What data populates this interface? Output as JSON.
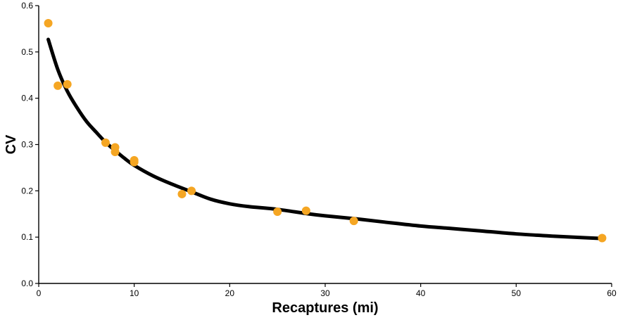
{
  "chart_data": {
    "type": "scatter",
    "xlabel": "Recaptures (mi)",
    "ylabel": "CV",
    "xlim": [
      0,
      60
    ],
    "ylim": [
      0,
      0.6
    ],
    "x_ticks": [
      "0",
      "10",
      "20",
      "30",
      "40",
      "50",
      "60"
    ],
    "y_ticks": [
      "0.0",
      "0.1",
      "0.2",
      "0.3",
      "0.4",
      "0.5",
      "0.6"
    ],
    "grid": false,
    "legend": "none",
    "point_color": "#F5A623",
    "line_color": "#000000",
    "points": [
      {
        "x": 1,
        "y": 0.562
      },
      {
        "x": 2,
        "y": 0.427
      },
      {
        "x": 3,
        "y": 0.43
      },
      {
        "x": 7,
        "y": 0.304
      },
      {
        "x": 8,
        "y": 0.294
      },
      {
        "x": 8,
        "y": 0.284
      },
      {
        "x": 10,
        "y": 0.266
      },
      {
        "x": 10,
        "y": 0.262
      },
      {
        "x": 15,
        "y": 0.193
      },
      {
        "x": 16,
        "y": 0.2
      },
      {
        "x": 25,
        "y": 0.155
      },
      {
        "x": 28,
        "y": 0.157
      },
      {
        "x": 33,
        "y": 0.135
      },
      {
        "x": 59,
        "y": 0.098
      }
    ],
    "fit_line": [
      {
        "x": 1,
        "y": 0.527
      },
      {
        "x": 2,
        "y": 0.462
      },
      {
        "x": 3,
        "y": 0.415
      },
      {
        "x": 4,
        "y": 0.38
      },
      {
        "x": 5,
        "y": 0.35
      },
      {
        "x": 6,
        "y": 0.327
      },
      {
        "x": 7,
        "y": 0.305
      },
      {
        "x": 8,
        "y": 0.287
      },
      {
        "x": 9,
        "y": 0.27
      },
      {
        "x": 10,
        "y": 0.255
      },
      {
        "x": 12,
        "y": 0.232
      },
      {
        "x": 14,
        "y": 0.214
      },
      {
        "x": 16,
        "y": 0.198
      },
      {
        "x": 18,
        "y": 0.182
      },
      {
        "x": 20,
        "y": 0.172
      },
      {
        "x": 22,
        "y": 0.166
      },
      {
        "x": 25,
        "y": 0.16
      },
      {
        "x": 28,
        "y": 0.151
      },
      {
        "x": 30,
        "y": 0.146
      },
      {
        "x": 33,
        "y": 0.14
      },
      {
        "x": 36,
        "y": 0.133
      },
      {
        "x": 40,
        "y": 0.124
      },
      {
        "x": 43,
        "y": 0.119
      },
      {
        "x": 46,
        "y": 0.114
      },
      {
        "x": 50,
        "y": 0.107
      },
      {
        "x": 54,
        "y": 0.102
      },
      {
        "x": 57,
        "y": 0.099
      },
      {
        "x": 59,
        "y": 0.097
      }
    ]
  }
}
